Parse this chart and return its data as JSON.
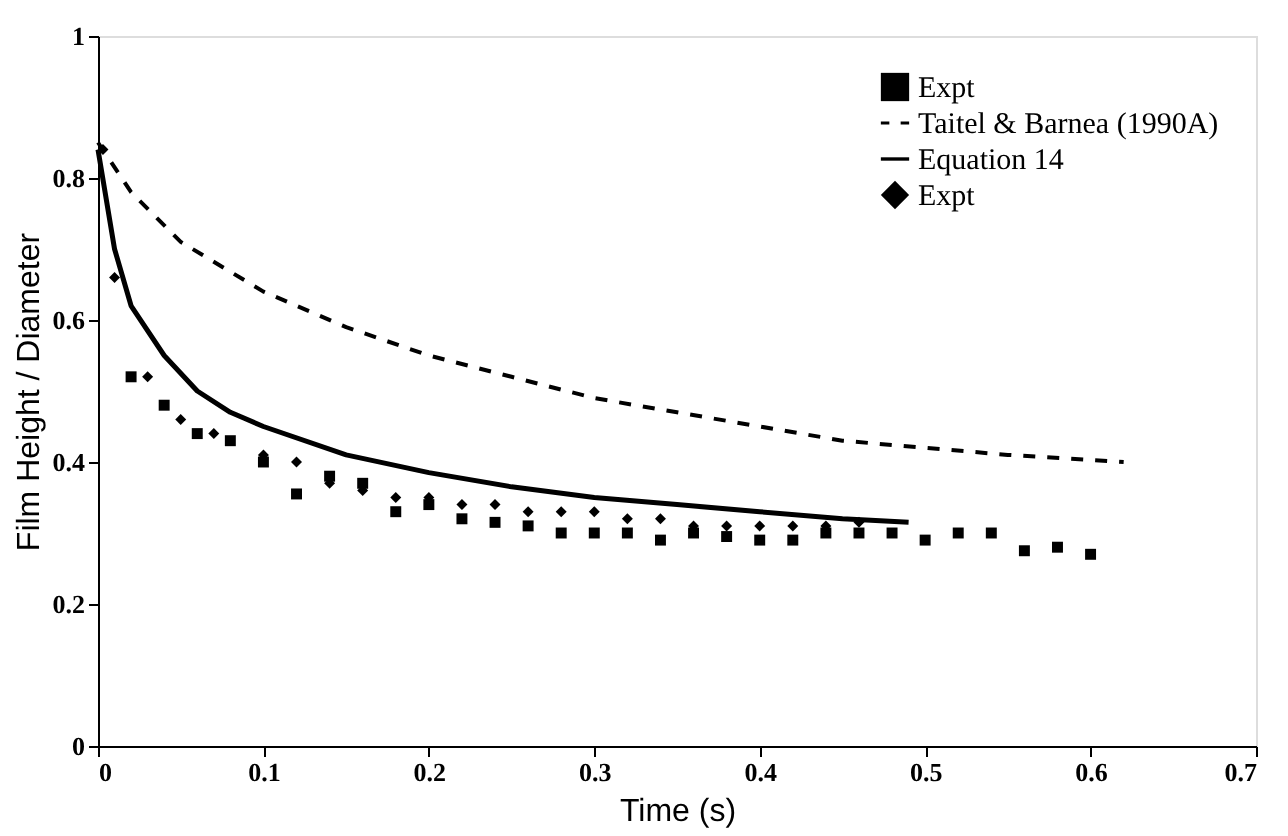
{
  "chart_data": {
    "type": "scatter",
    "xlabel": "Time (s)",
    "ylabel": "Film Height / Diameter",
    "xlim": [
      0,
      0.7
    ],
    "xticks": [
      0,
      0.1,
      0.2,
      0.3,
      0.4,
      0.5,
      0.6,
      0.7
    ],
    "ylim": [
      0,
      1
    ],
    "yticks": [
      0,
      0.2,
      0.4,
      0.6,
      0.8,
      1
    ],
    "grid": false,
    "legend": "top right",
    "series": [
      {
        "name": "Expt",
        "marker": "square",
        "color": "#000000",
        "x": [
          0.02,
          0.04,
          0.06,
          0.08,
          0.1,
          0.12,
          0.14,
          0.16,
          0.18,
          0.2,
          0.22,
          0.24,
          0.26,
          0.28,
          0.3,
          0.32,
          0.34,
          0.36,
          0.38,
          0.4,
          0.42,
          0.44,
          0.46,
          0.48,
          0.5,
          0.52,
          0.54,
          0.56,
          0.58,
          0.6
        ],
        "values": [
          0.52,
          0.48,
          0.44,
          0.43,
          0.4,
          0.355,
          0.38,
          0.37,
          0.33,
          0.34,
          0.32,
          0.315,
          0.31,
          0.3,
          0.3,
          0.3,
          0.29,
          0.3,
          0.295,
          0.29,
          0.29,
          0.3,
          0.3,
          0.3,
          0.29,
          0.3,
          0.3,
          0.275,
          0.28,
          0.27
        ]
      },
      {
        "name": "Taitel & Barnea (1990A)",
        "type": "line",
        "line_style": "dashed",
        "color": "#000000",
        "x": [
          0,
          0.02,
          0.05,
          0.1,
          0.15,
          0.2,
          0.25,
          0.3,
          0.35,
          0.4,
          0.45,
          0.5,
          0.55,
          0.62
        ],
        "values": [
          0.85,
          0.78,
          0.71,
          0.64,
          0.59,
          0.55,
          0.52,
          0.49,
          0.47,
          0.45,
          0.43,
          0.42,
          0.41,
          0.4
        ]
      },
      {
        "name": "Equation 14",
        "type": "line",
        "line_style": "solid",
        "color": "#000000",
        "x": [
          0,
          0.01,
          0.02,
          0.04,
          0.06,
          0.08,
          0.1,
          0.15,
          0.2,
          0.25,
          0.3,
          0.35,
          0.4,
          0.45,
          0.49
        ],
        "values": [
          0.84,
          0.7,
          0.62,
          0.55,
          0.5,
          0.47,
          0.45,
          0.41,
          0.385,
          0.365,
          0.35,
          0.34,
          0.33,
          0.32,
          0.315
        ]
      },
      {
        "name": "Expt",
        "marker": "diamond",
        "color": "#000000",
        "x": [
          0.003,
          0.01,
          0.03,
          0.05,
          0.07,
          0.1,
          0.12,
          0.14,
          0.16,
          0.18,
          0.2,
          0.22,
          0.24,
          0.26,
          0.28,
          0.3,
          0.32,
          0.34,
          0.36,
          0.38,
          0.4,
          0.42,
          0.44,
          0.46
        ],
        "values": [
          0.84,
          0.66,
          0.52,
          0.46,
          0.44,
          0.41,
          0.4,
          0.37,
          0.36,
          0.35,
          0.35,
          0.34,
          0.34,
          0.33,
          0.33,
          0.33,
          0.32,
          0.32,
          0.31,
          0.31,
          0.31,
          0.31,
          0.31,
          0.315
        ]
      }
    ]
  }
}
